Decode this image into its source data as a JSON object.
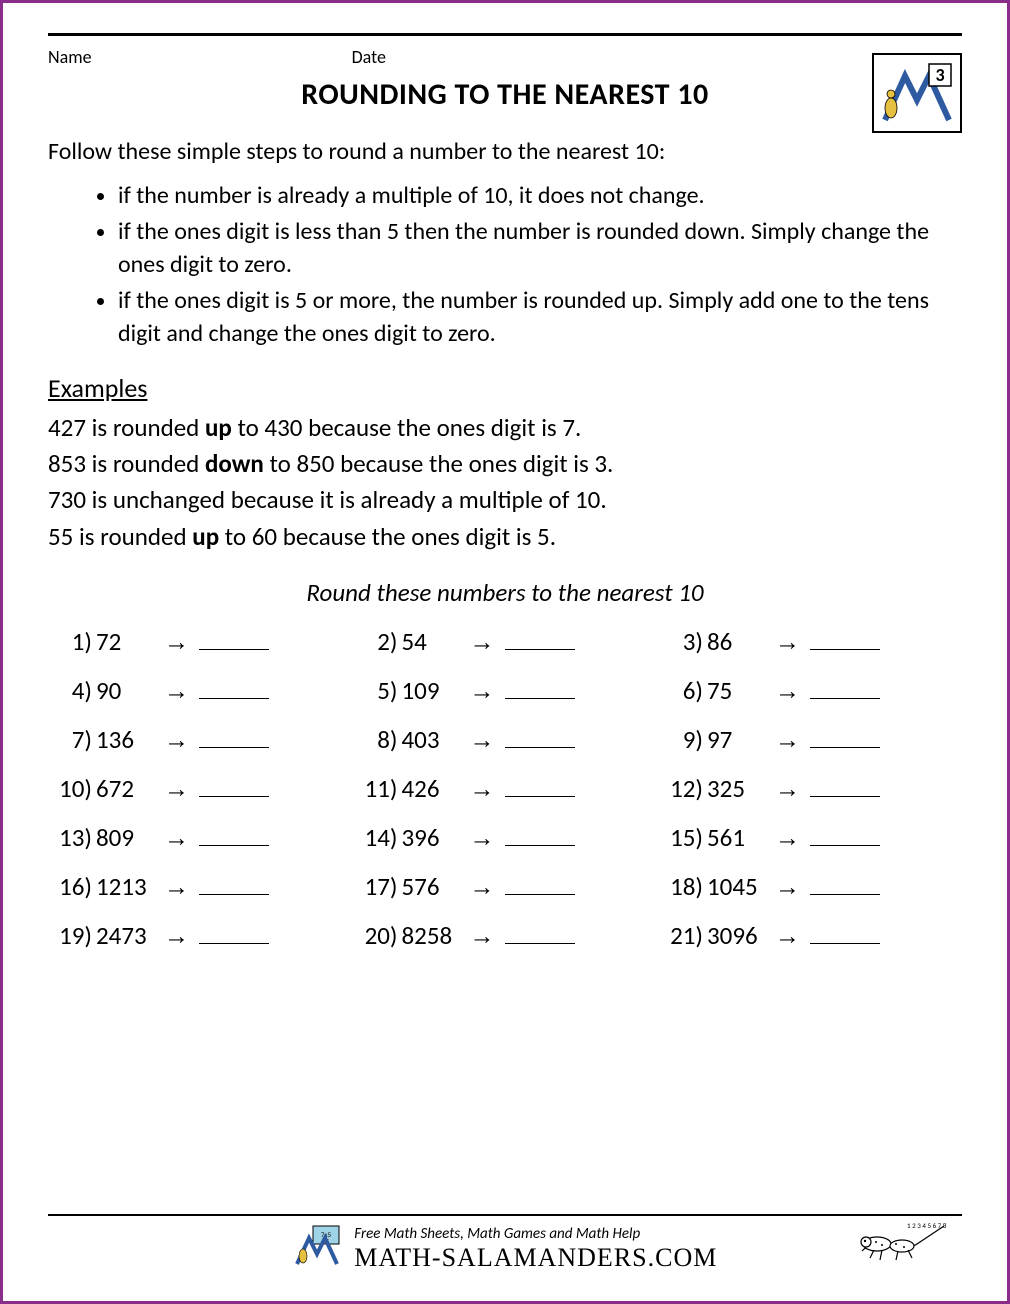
{
  "header": {
    "name_label": "Name",
    "date_label": "Date",
    "grade_badge": "3"
  },
  "title": "ROUNDING TO THE NEAREST 10",
  "intro": "Follow these simple steps to round a number to the nearest 10:",
  "bullets": [
    "if the number is already a multiple of 10, it does not change.",
    "if the ones digit is less than 5 then the number is rounded down. Simply change the ones digit to zero.",
    "if the ones digit is 5 or more, the number is rounded up. Simply add one to the tens digit and change the ones digit to zero."
  ],
  "examples_heading": "Examples",
  "examples": [
    {
      "pre": "427 is rounded ",
      "bold": "up",
      "post": " to 430 because the ones digit is 7."
    },
    {
      "pre": "853 is rounded ",
      "bold": "down",
      "post": " to 850 because the ones digit is 3."
    },
    {
      "pre": "730 is unchanged because it is already a multiple of 10.",
      "bold": "",
      "post": ""
    },
    {
      "pre": "55 is rounded ",
      "bold": "up",
      "post": " to 60 because the ones digit is 5."
    }
  ],
  "subtitle": "Round these numbers to the nearest 10",
  "arrow_glyph": "→",
  "problems": [
    [
      {
        "n": "1)",
        "v": "72"
      },
      {
        "n": "2)",
        "v": "54"
      },
      {
        "n": "3)",
        "v": "86"
      }
    ],
    [
      {
        "n": "4)",
        "v": "90"
      },
      {
        "n": "5)",
        "v": "109"
      },
      {
        "n": "6)",
        "v": "75"
      }
    ],
    [
      {
        "n": "7)",
        "v": "136"
      },
      {
        "n": "8)",
        "v": "403"
      },
      {
        "n": "9)",
        "v": "97"
      }
    ],
    [
      {
        "n": "10)",
        "v": "672"
      },
      {
        "n": "11)",
        "v": "426"
      },
      {
        "n": "12)",
        "v": "325"
      }
    ],
    [
      {
        "n": "13)",
        "v": "809"
      },
      {
        "n": "14)",
        "v": "396"
      },
      {
        "n": "15)",
        "v": "561"
      }
    ],
    [
      {
        "n": "16)",
        "v": "1213"
      },
      {
        "n": "17)",
        "v": "576"
      },
      {
        "n": "18)",
        "v": "1045"
      }
    ],
    [
      {
        "n": "19)",
        "v": "2473"
      },
      {
        "n": "20)",
        "v": "8258"
      },
      {
        "n": "21)",
        "v": "3096"
      }
    ]
  ],
  "footer": {
    "tagline": "Free Math Sheets, Math Games and Math Help",
    "brand": "MATH-SALAMANDERS.COM"
  },
  "colors": {
    "border": "#8a2d8a",
    "text": "#000000",
    "logo_blue": "#2d5aa0"
  }
}
